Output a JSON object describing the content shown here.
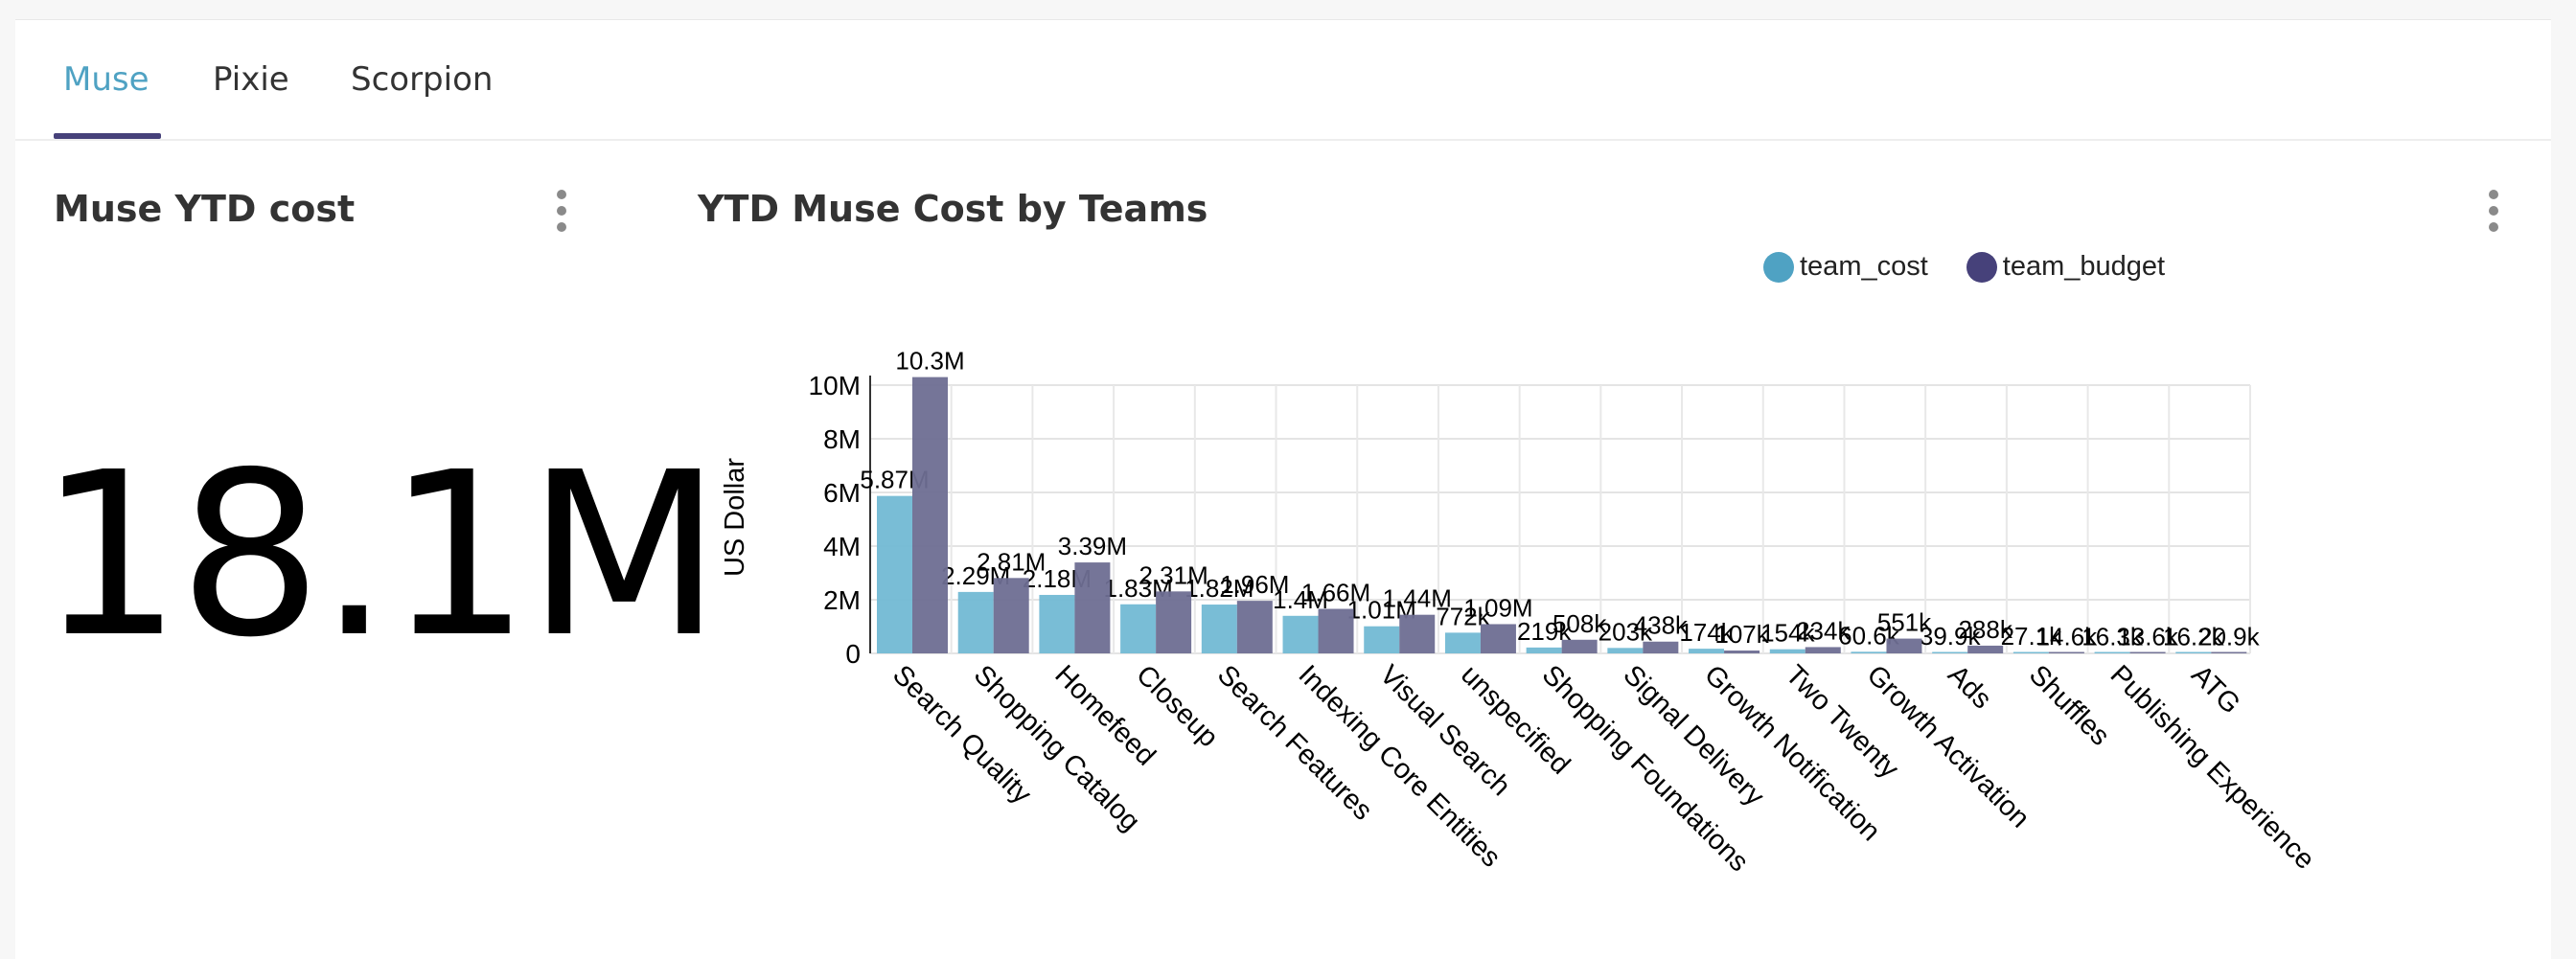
{
  "tabs": [
    {
      "label": "Muse",
      "active": true
    },
    {
      "label": "Pixie",
      "active": false
    },
    {
      "label": "Scorpion",
      "active": false
    }
  ],
  "kpi": {
    "title": "Muse YTD cost",
    "value": "18.1M"
  },
  "colors": {
    "accent": "#4fa2c3",
    "tab_underline": "#46417a",
    "team_cost": "#72b9d4",
    "team_budget": "#6e6e92"
  },
  "chart_data": {
    "type": "bar",
    "title": "YTD Muse Cost by Teams",
    "xlabel": "",
    "ylabel": "US Dollar",
    "ylim": [
      0,
      10000000
    ],
    "yticks": [
      {
        "value": 0,
        "label": "0"
      },
      {
        "value": 2000000,
        "label": "2M"
      },
      {
        "value": 4000000,
        "label": "4M"
      },
      {
        "value": 6000000,
        "label": "6M"
      },
      {
        "value": 8000000,
        "label": "8M"
      },
      {
        "value": 10000000,
        "label": "10M"
      }
    ],
    "grid": true,
    "legend_position": "top-right",
    "categories": [
      "Search Quality",
      "Shopping Catalog",
      "Homefeed",
      "Closeup",
      "Search Features",
      "Indexing Core Entities",
      "Visual Search",
      "unspecified",
      "Shopping Foundations",
      "Signal Delivery",
      "Growth Notification",
      "Two Twenty",
      "Growth Activation",
      "Ads",
      "Shuffles",
      "Publishing Experience",
      "ATG"
    ],
    "series": [
      {
        "name": "team_cost",
        "color": "#72b9d4",
        "values": [
          5870000,
          2290000,
          2180000,
          1830000,
          1820000,
          1400000,
          1010000,
          772000,
          219000,
          203000,
          174000,
          154000,
          60600,
          39900,
          27100,
          16300,
          16200
        ],
        "labels": [
          "5.87M",
          "2.29M",
          "2.18M",
          "1.83M",
          "1.82M",
          "1.4M",
          "1.01M",
          "772k",
          "219k",
          "203k",
          "174k",
          "154k",
          "60.6k",
          "39.9k",
          "27.1k",
          "16.3k",
          "16.2k"
        ]
      },
      {
        "name": "team_budget",
        "color": "#6e6e92",
        "values": [
          10300000,
          2810000,
          3390000,
          2310000,
          1960000,
          1660000,
          1440000,
          1090000,
          508000,
          438000,
          107000,
          234000,
          551000,
          288000,
          14600,
          13600,
          20900
        ],
        "labels": [
          "10.3M",
          "2.81M",
          "3.39M",
          "2.31M",
          "1.96M",
          "1.66M",
          "1.44M",
          "1.09M",
          "508k",
          "438k",
          "107k",
          "234k",
          "551k",
          "288k",
          "14.6k",
          "13.6k",
          "20.9k"
        ]
      }
    ]
  }
}
